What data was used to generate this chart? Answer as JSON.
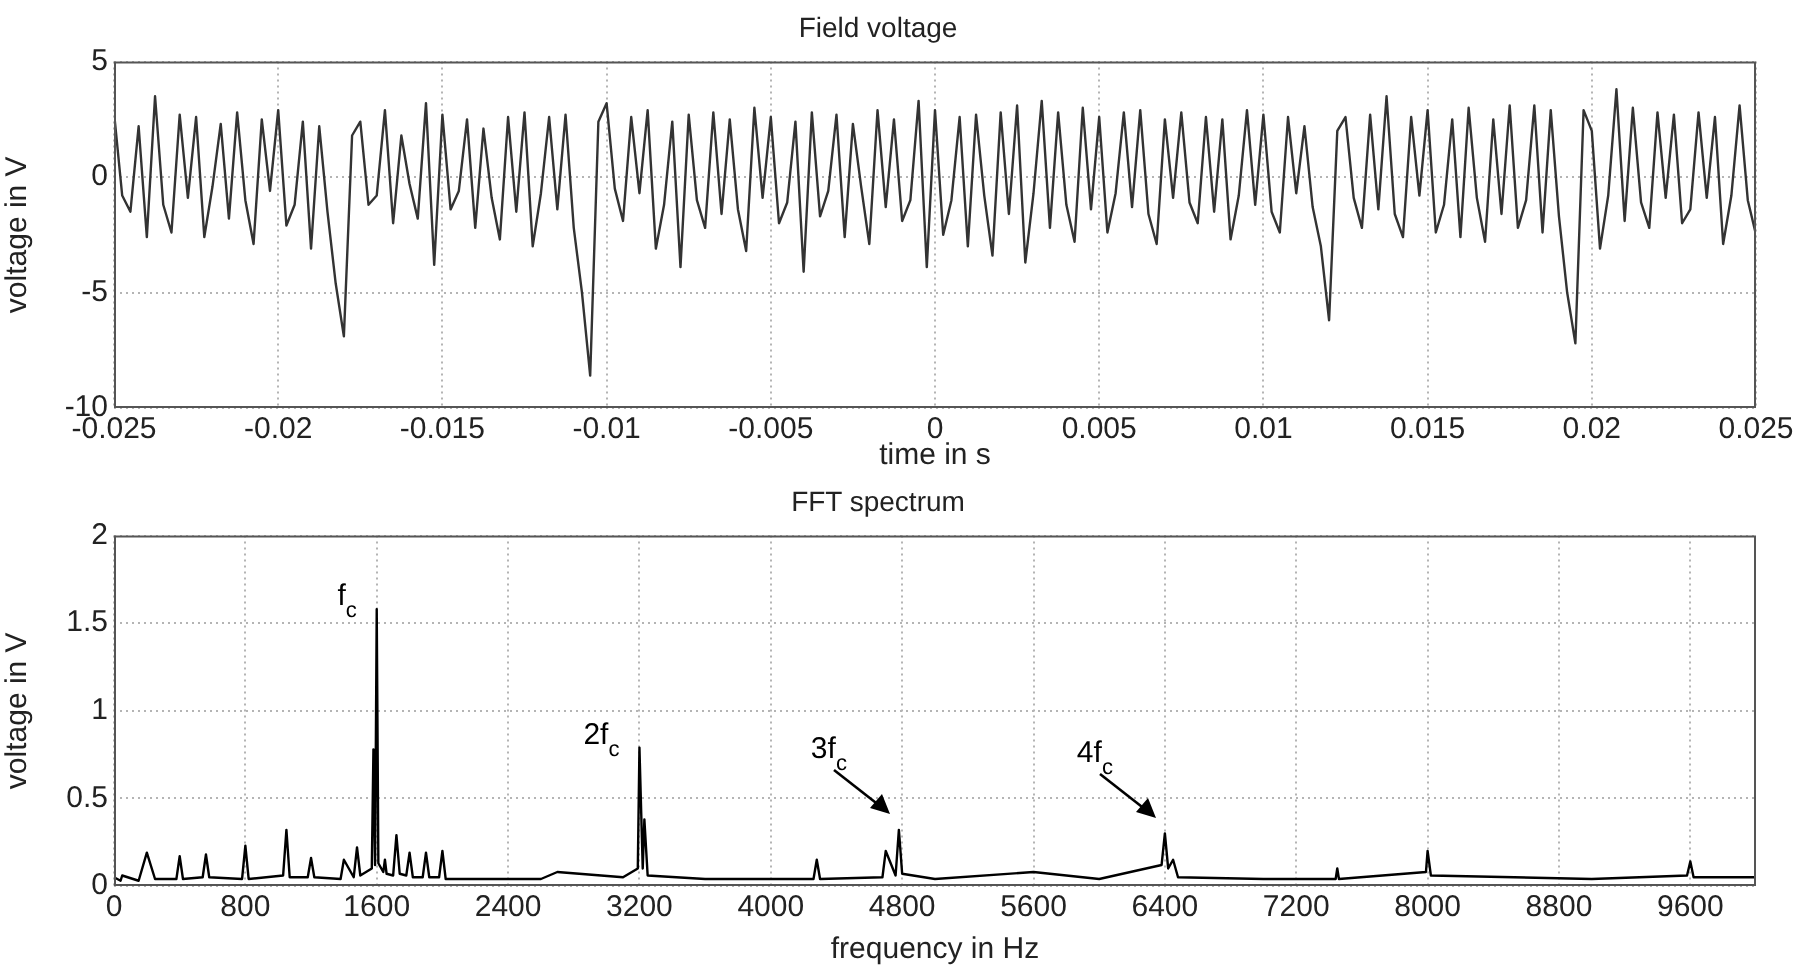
{
  "chart_data": [
    {
      "type": "line",
      "title": "Field voltage",
      "xlabel": "time in s",
      "ylabel": "voltage in V",
      "color": "#333333",
      "marker": "none",
      "grid": true,
      "xlim": [
        -0.025,
        0.025
      ],
      "xticks": [
        -0.025,
        -0.02,
        -0.015,
        -0.01,
        -0.005,
        0,
        0.005,
        0.01,
        0.015,
        0.02,
        0.025
      ],
      "ylim": [
        -10,
        5
      ],
      "yticks": [
        -10,
        -5,
        0,
        5
      ],
      "x": [
        -0.025,
        -0.02475,
        -0.0245,
        -0.02425,
        -0.024,
        -0.02375,
        -0.0235,
        -0.02325,
        -0.023,
        -0.02275,
        -0.0225,
        -0.02225,
        -0.022,
        -0.02175,
        -0.0215,
        -0.02125,
        -0.021,
        -0.02075,
        -0.0205,
        -0.02025,
        -0.02,
        -0.01975,
        -0.0195,
        -0.01925,
        -0.019,
        -0.01875,
        -0.0185,
        -0.01825,
        -0.018,
        -0.01775,
        -0.0175,
        -0.01725,
        -0.017,
        -0.01675,
        -0.0165,
        -0.01625,
        -0.016,
        -0.01575,
        -0.0155,
        -0.01525,
        -0.015,
        -0.01475,
        -0.0145,
        -0.01425,
        -0.014,
        -0.01375,
        -0.0135,
        -0.01325,
        -0.013,
        -0.01275,
        -0.0125,
        -0.01225,
        -0.012,
        -0.01175,
        -0.0115,
        -0.01125,
        -0.011,
        -0.01075,
        -0.0105,
        -0.01025,
        -0.01,
        -0.00975,
        -0.0095,
        -0.00925,
        -0.009,
        -0.00875,
        -0.0085,
        -0.00825,
        -0.008,
        -0.00775,
        -0.0075,
        -0.00725,
        -0.007,
        -0.00675,
        -0.0065,
        -0.00625,
        -0.006,
        -0.00575,
        -0.0055,
        -0.00525,
        -0.005,
        -0.00475,
        -0.0045,
        -0.00425,
        -0.004,
        -0.00375,
        -0.0035,
        -0.00325,
        -0.003,
        -0.00275,
        -0.0025,
        -0.00225,
        -0.002,
        -0.00175,
        -0.0015,
        -0.00125,
        -0.001,
        -0.00075,
        -0.0005,
        -0.00025,
        0,
        0.00025,
        0.0005,
        0.00075,
        0.001,
        0.00125,
        0.0015,
        0.00175,
        0.002,
        0.00225,
        0.0025,
        0.00275,
        0.003,
        0.00325,
        0.0035,
        0.00375,
        0.004,
        0.00425,
        0.0045,
        0.00475,
        0.005,
        0.00525,
        0.0055,
        0.00575,
        0.006,
        0.00625,
        0.0065,
        0.00675,
        0.007,
        0.00725,
        0.0075,
        0.00775,
        0.008,
        0.00825,
        0.0085,
        0.00875,
        0.009,
        0.00925,
        0.0095,
        0.00975,
        0.01,
        0.01025,
        0.0105,
        0.01075,
        0.011,
        0.01125,
        0.0115,
        0.01175,
        0.012,
        0.01225,
        0.0125,
        0.01275,
        0.013,
        0.01325,
        0.0135,
        0.01375,
        0.014,
        0.01425,
        0.0145,
        0.01475,
        0.015,
        0.01525,
        0.0155,
        0.01575,
        0.016,
        0.01625,
        0.0165,
        0.01675,
        0.017,
        0.01725,
        0.0175,
        0.01775,
        0.018,
        0.01825,
        0.0185,
        0.01875,
        0.019,
        0.01925,
        0.0195,
        0.01975,
        0.02,
        0.02025,
        0.0205,
        0.02075,
        0.021,
        0.02125,
        0.0215,
        0.02175,
        0.022,
        0.02225,
        0.0225,
        0.02275,
        0.023,
        0.02325,
        0.0235,
        0.02375,
        0.024,
        0.02425,
        0.0245,
        0.02475,
        0.025
      ],
      "values": [
        2.8,
        -0.8,
        -1.5,
        2.2,
        -2.6,
        3.5,
        -1.2,
        -2.4,
        2.7,
        -0.9,
        2.6,
        -2.6,
        -0.4,
        2.3,
        -1.8,
        2.8,
        -1.0,
        -2.9,
        2.5,
        -0.6,
        2.9,
        -2.1,
        -1.2,
        2.4,
        -3.1,
        2.2,
        -1.5,
        -4.6,
        -6.9,
        1.8,
        2.4,
        -1.2,
        -0.8,
        2.9,
        -2.0,
        1.8,
        -0.3,
        -1.8,
        3.2,
        -3.8,
        2.7,
        -1.4,
        -0.6,
        2.5,
        -2.2,
        2.1,
        -0.9,
        -2.7,
        2.6,
        -1.5,
        2.8,
        -3.0,
        -0.7,
        2.6,
        -1.4,
        2.7,
        -2.2,
        -5.0,
        -8.6,
        2.4,
        3.2,
        -0.5,
        -1.9,
        2.6,
        -0.7,
        2.9,
        -3.1,
        -1.2,
        2.4,
        -3.9,
        2.7,
        -1.0,
        -2.2,
        2.8,
        -1.6,
        2.5,
        -1.4,
        -3.2,
        3.0,
        -0.9,
        2.6,
        -2.0,
        -1.1,
        2.4,
        -4.1,
        2.8,
        -1.7,
        -0.6,
        2.7,
        -2.6,
        2.3,
        -0.4,
        -2.9,
        2.9,
        -1.3,
        2.5,
        -1.9,
        -1.0,
        3.3,
        -3.9,
        2.9,
        -2.5,
        -1.0,
        2.6,
        -3.0,
        2.7,
        -0.8,
        -3.4,
        2.8,
        -1.6,
        3.1,
        -3.7,
        -0.7,
        3.3,
        -2.2,
        2.8,
        -1.2,
        -2.8,
        3.0,
        -1.4,
        2.6,
        -2.4,
        -0.7,
        2.8,
        -1.3,
        2.9,
        -1.6,
        -2.9,
        2.5,
        -0.9,
        2.8,
        -1.1,
        -2.0,
        2.6,
        -1.5,
        2.5,
        -2.7,
        -0.8,
        2.9,
        -1.2,
        2.7,
        -1.5,
        -2.4,
        2.6,
        -0.7,
        2.2,
        -1.3,
        -3.0,
        -6.2,
        2.0,
        2.6,
        -0.9,
        -2.2,
        2.7,
        -1.4,
        3.5,
        -1.6,
        -2.6,
        2.6,
        -0.8,
        2.9,
        -2.4,
        -1.2,
        2.5,
        -2.6,
        3.0,
        -0.9,
        -2.8,
        2.5,
        -1.6,
        3.1,
        -2.2,
        -1.0,
        3.1,
        -2.4,
        2.9,
        -1.7,
        -5.0,
        -7.2,
        2.9,
        2.0,
        -3.1,
        -0.8,
        3.8,
        -1.9,
        3.0,
        -1.1,
        -2.2,
        2.8,
        -0.9,
        2.7,
        -2.0,
        -1.4,
        2.8,
        -0.9,
        2.6,
        -2.9,
        -0.8,
        3.1,
        -1.0,
        -2.5
      ]
    },
    {
      "type": "line",
      "title": "FFT spectrum",
      "xlabel": "frequency in Hz",
      "ylabel": "voltage in V",
      "color": "#000000",
      "marker": "none",
      "grid": true,
      "xlim": [
        0,
        10000
      ],
      "xticks": [
        0,
        800,
        1600,
        2400,
        3200,
        4000,
        4800,
        5600,
        6400,
        7200,
        8000,
        8800,
        9600
      ],
      "ylim": [
        0,
        2
      ],
      "yticks": [
        0,
        0.5,
        1,
        1.5,
        2
      ],
      "x": [
        0,
        40,
        50,
        150,
        200,
        250,
        380,
        400,
        420,
        540,
        560,
        580,
        780,
        800,
        820,
        1030,
        1050,
        1070,
        1180,
        1200,
        1220,
        1380,
        1400,
        1460,
        1480,
        1500,
        1570,
        1580,
        1590,
        1600,
        1610,
        1640,
        1650,
        1660,
        1700,
        1720,
        1740,
        1780,
        1800,
        1820,
        1880,
        1900,
        1920,
        1980,
        2000,
        2020,
        2600,
        2700,
        3100,
        3190,
        3200,
        3220,
        3230,
        3250,
        3600,
        4260,
        4280,
        4300,
        4680,
        4700,
        4760,
        4780,
        4800,
        5000,
        5600,
        6000,
        6380,
        6400,
        6420,
        6450,
        6480,
        7000,
        7440,
        7450,
        7460,
        7990,
        8000,
        8020,
        9000,
        9580,
        9600,
        9620,
        10000
      ],
      "values": [
        0.05,
        0.03,
        0.06,
        0.03,
        0.19,
        0.04,
        0.04,
        0.17,
        0.04,
        0.05,
        0.18,
        0.05,
        0.04,
        0.23,
        0.04,
        0.06,
        0.32,
        0.05,
        0.05,
        0.16,
        0.05,
        0.04,
        0.15,
        0.05,
        0.22,
        0.06,
        0.1,
        0.78,
        0.12,
        1.58,
        0.13,
        0.08,
        0.15,
        0.07,
        0.06,
        0.29,
        0.07,
        0.06,
        0.19,
        0.05,
        0.05,
        0.19,
        0.05,
        0.05,
        0.2,
        0.04,
        0.04,
        0.08,
        0.05,
        0.1,
        0.79,
        0.1,
        0.38,
        0.06,
        0.04,
        0.04,
        0.15,
        0.04,
        0.05,
        0.2,
        0.06,
        0.32,
        0.07,
        0.04,
        0.08,
        0.04,
        0.12,
        0.3,
        0.1,
        0.15,
        0.05,
        0.04,
        0.04,
        0.1,
        0.04,
        0.08,
        0.2,
        0.06,
        0.04,
        0.06,
        0.14,
        0.05,
        0.05
      ],
      "annotations": [
        {
          "text": "f$_{c}$",
          "x": 1600,
          "y": 1.58
        },
        {
          "text": "2f$_{c}$",
          "x": 3200,
          "y": 0.79
        },
        {
          "text": "3f$_{c}$",
          "x": 4780,
          "y": 0.32
        },
        {
          "text": "4f$_{c}$",
          "x": 6400,
          "y": 0.3
        }
      ]
    }
  ]
}
